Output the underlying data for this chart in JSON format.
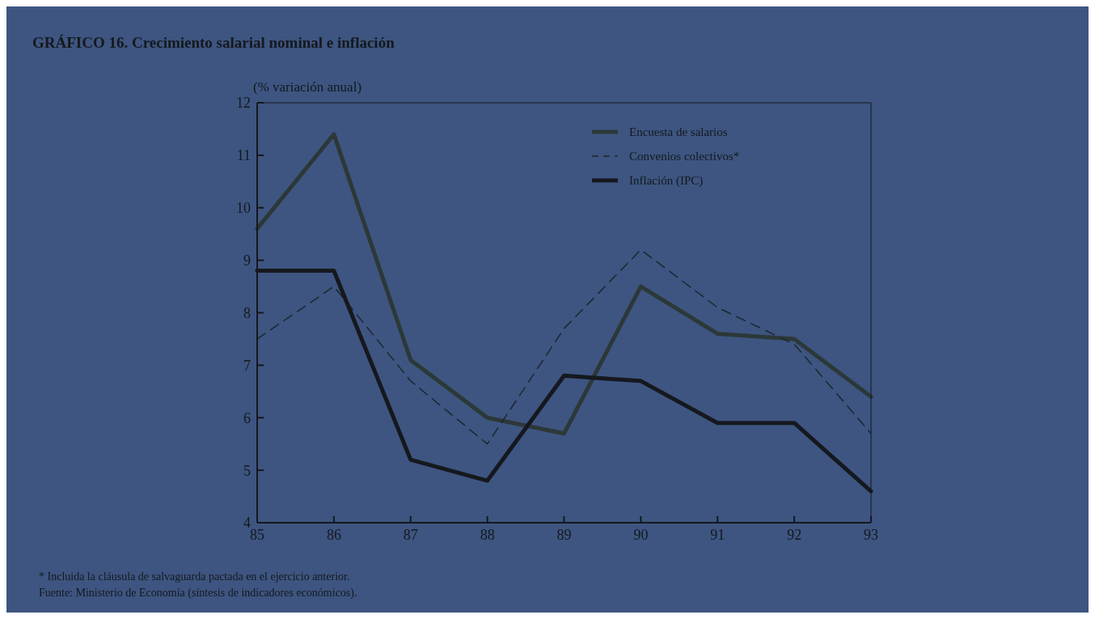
{
  "chart_data": {
    "type": "line",
    "title": "GRÁFICO 16. Crecimiento salarial nominal e inflación",
    "ylabel": "(% variación anual)",
    "categories": [
      "85",
      "86",
      "87",
      "88",
      "89",
      "90",
      "91",
      "92",
      "93"
    ],
    "series": [
      {
        "name": "Encuesta de salarios",
        "color": "#2c3838",
        "values": [
          9.6,
          11.4,
          7.1,
          6.0,
          5.7,
          8.5,
          7.6,
          7.5,
          6.4
        ]
      },
      {
        "name": "Convenios colectivos*",
        "color": "#1e2630",
        "line_style": "dashed",
        "values": [
          7.5,
          8.5,
          6.7,
          5.5,
          7.7,
          9.2,
          8.1,
          7.4,
          5.7
        ]
      },
      {
        "name": "Inflación (IPC)",
        "color": "#15181e",
        "values": [
          8.8,
          8.8,
          5.2,
          4.8,
          6.8,
          6.7,
          5.9,
          5.9,
          4.6
        ]
      }
    ],
    "ylim": [
      4,
      12
    ],
    "yticks": [
      4,
      5,
      6,
      7,
      8,
      9,
      10,
      11,
      12
    ],
    "grid": false,
    "legend": "top right",
    "marker": "none",
    "annotations": [
      "* Incluida la cláusula de salvaguarda pactada en el ejercicio anterior.",
      "Fuente: Ministerio de Economía (síntesis de indicadores económicos)."
    ]
  }
}
